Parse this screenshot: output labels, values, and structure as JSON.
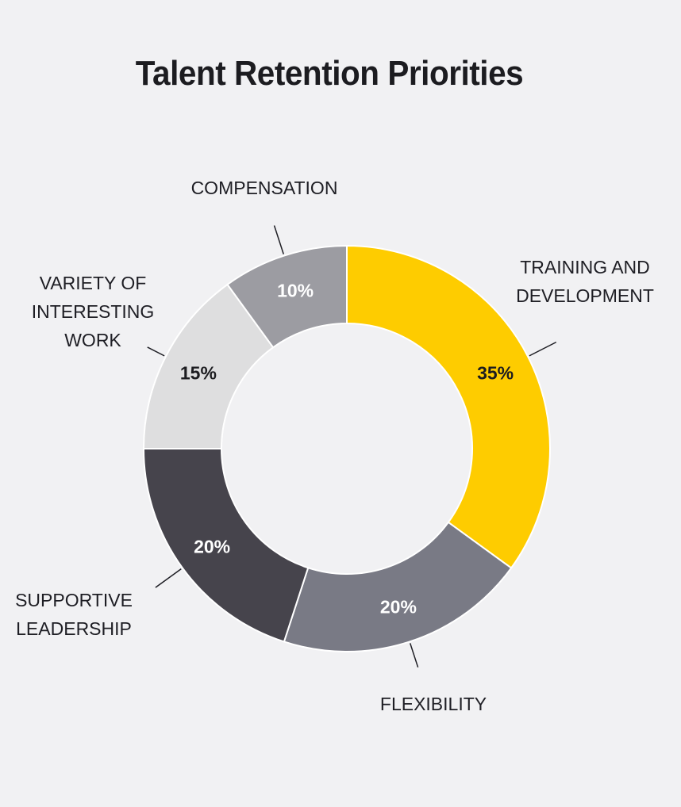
{
  "chart_data": {
    "type": "pie",
    "title": "Talent Retention Priorities",
    "donut": true,
    "slices": [
      {
        "label": "TRAINING AND\nDEVELOPMENT",
        "value": 35,
        "display": "35%",
        "color": "#fecc00",
        "text_color": "#1c1c20"
      },
      {
        "label": "FLEXIBILITY",
        "value": 20,
        "display": "20%",
        "color": "#797a85",
        "text_color": "#ffffff"
      },
      {
        "label": "SUPPORTIVE\nLEADERSHIP",
        "value": 20,
        "display": "20%",
        "color": "#46444c",
        "text_color": "#ffffff"
      },
      {
        "label": "VARIETY OF\nINTERESTING\nWORK",
        "value": 15,
        "display": "15%",
        "color": "#dededf",
        "text_color": "#1c1c20"
      },
      {
        "label": "COMPENSATION",
        "value": 10,
        "display": "10%",
        "color": "#9c9ca2",
        "text_color": "#ffffff"
      }
    ],
    "legend": "none",
    "start": "top",
    "direction": "clockwise"
  }
}
